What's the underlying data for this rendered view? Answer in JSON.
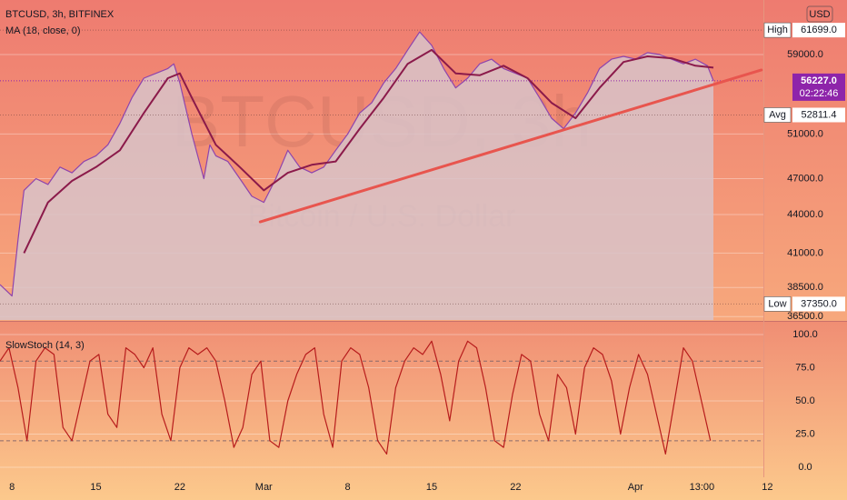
{
  "chart_data": [
    {
      "type": "line",
      "title": "BTCUSD, 3h, BITFINEX",
      "watermark": [
        "BTCUSD, 3h",
        "Bitcoin / U.S. Dollar"
      ],
      "currency": "USD",
      "log_scale": true,
      "xlim": [
        38,
        102.5
      ],
      "ylim": [
        36270,
        65200
      ],
      "yticks": [
        {
          "value": 36500,
          "label": "36500.0"
        },
        {
          "value": 38500,
          "label": "38500.0"
        },
        {
          "value": 41000,
          "label": "41000.0"
        },
        {
          "value": 44000,
          "label": "44000.0"
        },
        {
          "value": 47000,
          "label": "47000.0"
        },
        {
          "value": 51000,
          "label": "51000.0"
        },
        {
          "value": 59000,
          "label": "59000.0"
        }
      ],
      "grid": true,
      "series": [
        {
          "color": "#8e44ad",
          "fill": "#d8c3c9",
          "x": [
            38,
            39,
            39.5,
            40,
            41,
            42,
            43,
            44,
            45,
            46,
            47,
            48,
            49,
            50,
            51,
            52,
            52.5,
            53,
            54,
            55,
            55.5,
            56,
            57,
            58,
            59,
            60,
            61,
            62,
            63,
            64,
            65,
            66,
            67,
            68,
            69,
            70,
            71,
            72,
            73,
            74,
            75,
            76,
            77,
            78,
            79,
            80,
            81,
            82,
            83,
            84,
            85,
            86,
            87,
            88,
            89,
            90,
            91,
            92,
            93,
            94,
            95,
            96,
            97,
            97.5
          ],
          "values": [
            38700,
            37900,
            42000,
            46000,
            47000,
            46500,
            48000,
            47500,
            48500,
            49000,
            50000,
            52000,
            54500,
            56500,
            57000,
            57500,
            58000,
            56000,
            51000,
            47000,
            50000,
            49000,
            48500,
            47000,
            45500,
            45000,
            47000,
            49500,
            48000,
            47500,
            48000,
            49500,
            51000,
            53000,
            54000,
            56000,
            57500,
            59500,
            61500,
            60000,
            57500,
            55500,
            56500,
            58000,
            58500,
            57500,
            57000,
            56500,
            54500,
            52500,
            51500,
            53000,
            55000,
            57500,
            58500,
            58800,
            58500,
            59200,
            59000,
            58500,
            58000,
            58500,
            57800,
            56227
          ]
        },
        {
          "name": "MA (18, close, 0)",
          "color": "#8b1a4a",
          "x": [
            40,
            42,
            44,
            46,
            48,
            50,
            52,
            53,
            54,
            56,
            58,
            60,
            62,
            64,
            66,
            68,
            70,
            72,
            74,
            76,
            78,
            80,
            82,
            84,
            86,
            88,
            90,
            92,
            94,
            96,
            97.5
          ],
          "values": [
            41000,
            45000,
            46800,
            48000,
            49500,
            53000,
            56500,
            57000,
            54500,
            50000,
            48000,
            46000,
            47500,
            48200,
            48500,
            51500,
            54500,
            58000,
            59500,
            57000,
            56800,
            57800,
            56500,
            54000,
            52500,
            55500,
            58200,
            58800,
            58600,
            57800,
            57600
          ]
        }
      ],
      "trendline": {
        "color": "#e8554e",
        "x": [
          59.7,
          101.5
        ],
        "values": [
          43420,
          57350
        ]
      },
      "markers": [
        {
          "name": "High",
          "value": 61699,
          "label": "61699.0"
        },
        {
          "name": "Avg",
          "value": 52811.4,
          "label": "52811.4"
        },
        {
          "name": "Low",
          "value": 37350,
          "label": "37350.0"
        }
      ],
      "last": {
        "value": 56227,
        "label": "56227.0",
        "countdown": "02:22:46",
        "color": "#8e24aa"
      }
    },
    {
      "type": "line",
      "title": "SlowStoch (14, 3)",
      "xlim": [
        38,
        102.5
      ],
      "ylim": [
        -7.5,
        108.9
      ],
      "yticks": [
        {
          "value": 0,
          "label": "0.0"
        },
        {
          "value": 25,
          "label": "25.0"
        },
        {
          "value": 50,
          "label": "50.0"
        },
        {
          "value": 75,
          "label": "75.0"
        },
        {
          "value": 100,
          "label": "100.0"
        }
      ],
      "grid": true,
      "bands": [
        20,
        80
      ],
      "xticks": [
        {
          "value": 39,
          "label": "8"
        },
        {
          "value": 46,
          "label": "15"
        },
        {
          "value": 53,
          "label": "22"
        },
        {
          "value": 60,
          "label": "Mar"
        },
        {
          "value": 67,
          "label": "8"
        },
        {
          "value": 74,
          "label": "15"
        },
        {
          "value": 81,
          "label": "22"
        },
        {
          "value": 91,
          "label": "Apr"
        },
        {
          "value": 96.54,
          "label": "13:00"
        },
        {
          "value": 102,
          "label": "12"
        }
      ],
      "series": [
        {
          "color": "#b71c1c",
          "x": [
            38,
            38.75,
            39.5,
            40.25,
            41,
            41.75,
            42.5,
            43.25,
            44,
            44.75,
            45.5,
            46.25,
            47,
            47.75,
            48.5,
            49.25,
            50,
            50.75,
            51.5,
            52.25,
            53,
            53.75,
            54.5,
            55.25,
            56,
            56.75,
            57.5,
            58.25,
            59,
            59.75,
            60.5,
            61.25,
            62,
            62.75,
            63.5,
            64.25,
            65,
            65.75,
            66.5,
            67.25,
            68,
            68.75,
            69.5,
            70.25,
            71,
            71.75,
            72.5,
            73.25,
            74,
            74.75,
            75.5,
            76.25,
            77,
            77.75,
            78.5,
            79.25,
            80,
            80.75,
            81.5,
            82.25,
            83,
            83.75,
            84.5,
            85.25,
            86,
            86.75,
            87.5,
            88.25,
            89,
            89.75,
            90.5,
            91.25,
            92,
            92.75,
            93.5,
            94.25,
            95,
            95.75,
            96.5,
            97.25
          ],
          "values": [
            80,
            90,
            60,
            20,
            80,
            90,
            85,
            30,
            20,
            50,
            80,
            85,
            40,
            30,
            90,
            85,
            75,
            90,
            40,
            20,
            75,
            90,
            85,
            90,
            80,
            50,
            15,
            30,
            70,
            80,
            20,
            15,
            50,
            70,
            85,
            90,
            40,
            15,
            80,
            90,
            85,
            60,
            20,
            10,
            60,
            80,
            90,
            85,
            95,
            70,
            35,
            80,
            95,
            90,
            60,
            20,
            15,
            55,
            85,
            80,
            40,
            20,
            70,
            60,
            25,
            75,
            90,
            85,
            65,
            25,
            60,
            85,
            70,
            40,
            10,
            50,
            90,
            80,
            50,
            20
          ]
        }
      ]
    }
  ]
}
